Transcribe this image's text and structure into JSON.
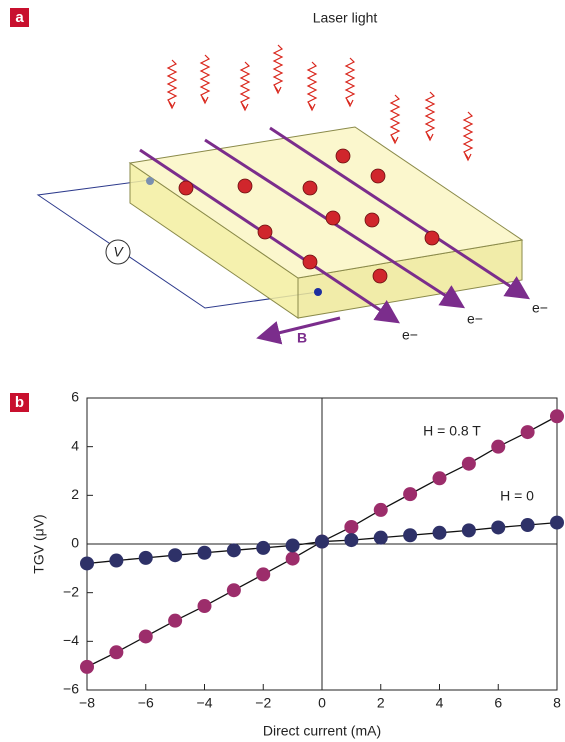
{
  "panel_a": {
    "label": "a",
    "laser": "Laser light",
    "voltmeter": "V",
    "field": "B",
    "electrons": [
      "e−",
      "e−",
      "e−"
    ]
  },
  "panel_b_label": "b",
  "chart_data": {
    "type": "line",
    "xlabel": "Direct current (mA)",
    "ylabel": "TGV (μV)",
    "x": [
      -8,
      -7,
      -6,
      -5,
      -4,
      -3,
      -2,
      -1,
      0,
      1,
      2,
      3,
      4,
      5,
      6,
      7,
      8
    ],
    "series": [
      {
        "name": "H = 0.8 T",
        "color": "#9c2d6b",
        "values": [
          -5.05,
          -4.45,
          -3.8,
          -3.15,
          -2.55,
          -1.9,
          -1.25,
          -0.6,
          0.1,
          0.7,
          1.4,
          2.05,
          2.7,
          3.3,
          4.0,
          4.6,
          5.25
        ]
      },
      {
        "name": "H = 0",
        "color": "#2e3168",
        "values": [
          -0.8,
          -0.68,
          -0.57,
          -0.46,
          -0.36,
          -0.26,
          -0.16,
          -0.06,
          0.1,
          0.16,
          0.26,
          0.36,
          0.46,
          0.56,
          0.68,
          0.78,
          0.88
        ]
      }
    ],
    "xlim": [
      -8,
      8
    ],
    "ylim": [
      -6,
      6
    ],
    "xticks": [
      {
        "value": -8,
        "label": "−8"
      },
      {
        "value": -6,
        "label": "−6"
      },
      {
        "value": -4,
        "label": "−4"
      },
      {
        "value": -2,
        "label": "−2"
      },
      0,
      2,
      4,
      6,
      8
    ],
    "yticks": [
      {
        "value": -6,
        "label": "−6"
      },
      {
        "value": -4,
        "label": "−4"
      },
      {
        "value": -2,
        "label": "−2"
      },
      0,
      2,
      4,
      6
    ]
  }
}
